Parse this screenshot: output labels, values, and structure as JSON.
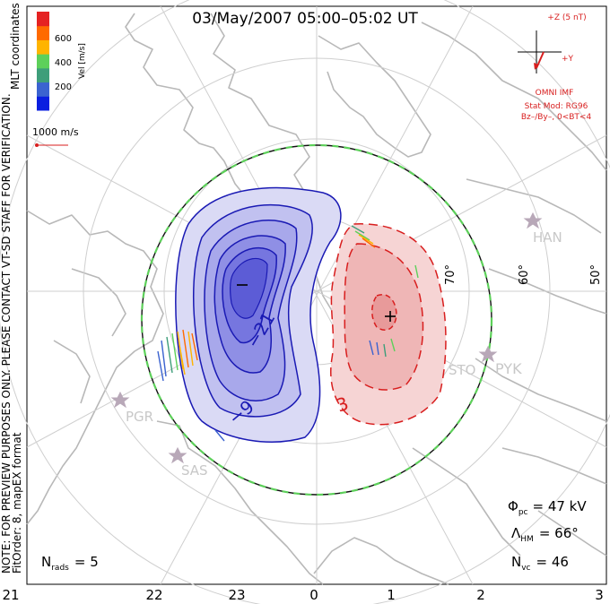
{
  "title": "03/May/2007 05:00–05:02 UT",
  "colorbar": {
    "ticks": [
      "600",
      "400",
      "200"
    ],
    "label": "Vel [m/s]",
    "colors": [
      "#0a1fe0",
      "#3b63d0",
      "#3e9e7a",
      "#5dd05a",
      "#ffb400",
      "#ff6a00",
      "#e52222"
    ]
  },
  "coordinates_label": "MLT coordinates",
  "vertical_note": "NOTE: FOR PREVIEW PURPOSES ONLY. PLEASE CONTACT VT-SD STAFF FOR VERIFICATION.",
  "fit_note": "FitOrder: 8, mapEX format",
  "scale_vector": "1000 m/s",
  "imf": {
    "z_label": "+Z (5 nT)",
    "y_label": "+Y",
    "title": "OMNI IMF",
    "stat_mod": "Stat Mod: RG96",
    "condition": "Bz–/By–, 0<BT<4"
  },
  "latitude_labels": [
    "70°",
    "60°",
    "50°"
  ],
  "stations": [
    "HAN",
    "PYK",
    "STO",
    "PGR",
    "SAS"
  ],
  "contour_labels": {
    "neg1": "−21",
    "neg2": "−9",
    "pos1": "3"
  },
  "stats": {
    "phi_label": "Φ",
    "phi_sub": "pc",
    "phi_value": "= 47 kV",
    "lambda_label": "Λ",
    "lambda_sub": "HM",
    "lambda_value": "= 66°",
    "nvc_label": "N",
    "nvc_sub": "vc",
    "nvc_value": "= 46",
    "nrads_label": "N",
    "nrads_sub": "rads",
    "nrads_value": "= 5"
  },
  "mlt_axis": [
    "21",
    "22",
    "23",
    "0",
    "1",
    "2",
    "3"
  ],
  "colors": {
    "negative_fill": "#5a5ae6",
    "positive_fill": "#e85a5a",
    "negative_contour": "#1a1ab4",
    "positive_contour": "#d81e1e",
    "boundary": "#5dd05a",
    "land": "#b8b8b8",
    "grid": "#c8c8c8"
  }
}
